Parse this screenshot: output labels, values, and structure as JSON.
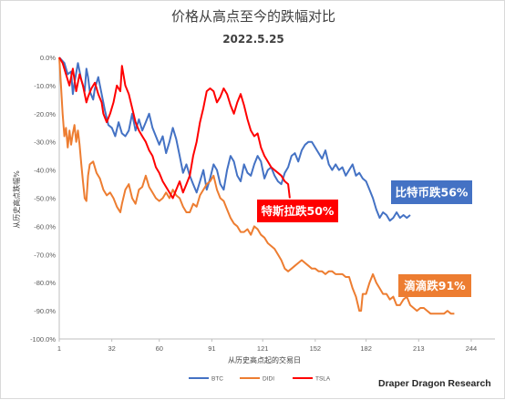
{
  "chart_data": {
    "type": "line",
    "title": "价格从高点至今的跌幅对比",
    "subtitle": "2022.5.25",
    "xlabel": "从历史高点起的交易日",
    "ylabel": "从历史高点跌幅%",
    "x_ticks": [
      "1",
      "32",
      "60",
      "91",
      "121",
      "152",
      "182",
      "213",
      "244"
    ],
    "x_tick_values": [
      1,
      32,
      60,
      91,
      121,
      152,
      182,
      213,
      244
    ],
    "xlim": [
      1,
      258
    ],
    "y_ticks": [
      "0.0%",
      "-10.0%",
      "-20.0%",
      "-30.0%",
      "-40.0%",
      "-50.0%",
      "-60.0%",
      "-70.0%",
      "-80.0%",
      "-90.0%",
      "-100.0%"
    ],
    "y_tick_values": [
      0,
      -10,
      -20,
      -30,
      -40,
      -50,
      -60,
      -70,
      -80,
      -90,
      -100
    ],
    "ylim": [
      -100,
      0
    ],
    "grid": false,
    "legend_position": "bottom",
    "series": [
      {
        "name": "BTC",
        "color": "#4472c4",
        "points": [
          [
            1,
            0
          ],
          [
            4,
            -2
          ],
          [
            6,
            -6
          ],
          [
            8,
            -5
          ],
          [
            9,
            -13
          ],
          [
            10,
            -9
          ],
          [
            12,
            -2
          ],
          [
            14,
            -8
          ],
          [
            16,
            -12
          ],
          [
            17,
            -4
          ],
          [
            18,
            -7
          ],
          [
            19,
            -12
          ],
          [
            21,
            -15
          ],
          [
            22,
            -11
          ],
          [
            24,
            -7
          ],
          [
            26,
            -13
          ],
          [
            28,
            -19
          ],
          [
            30,
            -24
          ],
          [
            32,
            -25
          ],
          [
            34,
            -28
          ],
          [
            36,
            -23
          ],
          [
            38,
            -27
          ],
          [
            40,
            -28
          ],
          [
            42,
            -26
          ],
          [
            44,
            -20
          ],
          [
            46,
            -26
          ],
          [
            48,
            -22
          ],
          [
            50,
            -26
          ],
          [
            52,
            -23
          ],
          [
            54,
            -20
          ],
          [
            56,
            -25
          ],
          [
            58,
            -28
          ],
          [
            60,
            -31
          ],
          [
            62,
            -28
          ],
          [
            64,
            -34
          ],
          [
            66,
            -30
          ],
          [
            68,
            -25
          ],
          [
            70,
            -29
          ],
          [
            72,
            -35
          ],
          [
            74,
            -41
          ],
          [
            76,
            -38
          ],
          [
            78,
            -42
          ],
          [
            80,
            -45
          ],
          [
            82,
            -48
          ],
          [
            84,
            -44
          ],
          [
            86,
            -40
          ],
          [
            88,
            -47
          ],
          [
            90,
            -43
          ],
          [
            92,
            -38
          ],
          [
            94,
            -40
          ],
          [
            96,
            -45
          ],
          [
            98,
            -47
          ],
          [
            100,
            -40
          ],
          [
            102,
            -35
          ],
          [
            104,
            -37
          ],
          [
            106,
            -42
          ],
          [
            108,
            -44
          ],
          [
            110,
            -38
          ],
          [
            112,
            -41
          ],
          [
            114,
            -42
          ],
          [
            116,
            -38
          ],
          [
            118,
            -35
          ],
          [
            120,
            -37
          ],
          [
            122,
            -43
          ],
          [
            124,
            -40
          ],
          [
            126,
            -39
          ],
          [
            128,
            -42
          ],
          [
            130,
            -44
          ],
          [
            132,
            -45
          ],
          [
            134,
            -41
          ],
          [
            136,
            -39
          ],
          [
            138,
            -35
          ],
          [
            140,
            -34
          ],
          [
            142,
            -37
          ],
          [
            144,
            -33
          ],
          [
            146,
            -31
          ],
          [
            148,
            -30
          ],
          [
            150,
            -30
          ],
          [
            152,
            -32
          ],
          [
            154,
            -34
          ],
          [
            156,
            -36
          ],
          [
            158,
            -33
          ],
          [
            160,
            -38
          ],
          [
            162,
            -40
          ],
          [
            164,
            -38
          ],
          [
            166,
            -40
          ],
          [
            168,
            -39
          ],
          [
            170,
            -42
          ],
          [
            172,
            -40
          ],
          [
            174,
            -38
          ],
          [
            176,
            -42
          ],
          [
            178,
            -41
          ],
          [
            180,
            -43
          ],
          [
            182,
            -44
          ],
          [
            184,
            -47
          ],
          [
            186,
            -50
          ],
          [
            188,
            -54
          ],
          [
            190,
            -57
          ],
          [
            192,
            -55
          ],
          [
            194,
            -56
          ],
          [
            196,
            -58
          ],
          [
            198,
            -57
          ],
          [
            200,
            -55
          ],
          [
            202,
            -57
          ],
          [
            204,
            -56
          ],
          [
            206,
            -57
          ],
          [
            208,
            -56
          ]
        ]
      },
      {
        "name": "DIDI",
        "color": "#ed7d31",
        "points": [
          [
            1,
            0
          ],
          [
            2,
            -10
          ],
          [
            3,
            -20
          ],
          [
            4,
            -28
          ],
          [
            5,
            -25
          ],
          [
            6,
            -32
          ],
          [
            7,
            -26
          ],
          [
            8,
            -31
          ],
          [
            9,
            -27
          ],
          [
            10,
            -24
          ],
          [
            11,
            -30
          ],
          [
            12,
            -26
          ],
          [
            13,
            -31
          ],
          [
            14,
            -38
          ],
          [
            15,
            -44
          ],
          [
            16,
            -50
          ],
          [
            17,
            -51
          ],
          [
            18,
            -42
          ],
          [
            19,
            -38
          ],
          [
            21,
            -37
          ],
          [
            23,
            -41
          ],
          [
            25,
            -43
          ],
          [
            27,
            -47
          ],
          [
            29,
            -49
          ],
          [
            31,
            -48
          ],
          [
            33,
            -50
          ],
          [
            35,
            -53
          ],
          [
            37,
            -55
          ],
          [
            38,
            -52
          ],
          [
            40,
            -47
          ],
          [
            42,
            -45
          ],
          [
            44,
            -50
          ],
          [
            46,
            -52
          ],
          [
            48,
            -47
          ],
          [
            50,
            -46
          ],
          [
            52,
            -42
          ],
          [
            54,
            -46
          ],
          [
            56,
            -48
          ],
          [
            58,
            -50
          ],
          [
            60,
            -51
          ],
          [
            62,
            -50
          ],
          [
            64,
            -48
          ],
          [
            66,
            -50
          ],
          [
            68,
            -47
          ],
          [
            70,
            -49
          ],
          [
            72,
            -50
          ],
          [
            74,
            -53
          ],
          [
            76,
            -55
          ],
          [
            78,
            -55
          ],
          [
            80,
            -52
          ],
          [
            82,
            -53
          ],
          [
            84,
            -49
          ],
          [
            86,
            -47
          ],
          [
            88,
            -45
          ],
          [
            90,
            -44
          ],
          [
            92,
            -42
          ],
          [
            94,
            -47
          ],
          [
            96,
            -50
          ],
          [
            98,
            -51
          ],
          [
            100,
            -54
          ],
          [
            102,
            -57
          ],
          [
            104,
            -59
          ],
          [
            106,
            -60
          ],
          [
            108,
            -62
          ],
          [
            110,
            -62
          ],
          [
            112,
            -61
          ],
          [
            114,
            -63
          ],
          [
            116,
            -60
          ],
          [
            118,
            -61
          ],
          [
            120,
            -63
          ],
          [
            122,
            -64
          ],
          [
            124,
            -66
          ],
          [
            126,
            -67
          ],
          [
            128,
            -68
          ],
          [
            130,
            -70
          ],
          [
            132,
            -72
          ],
          [
            134,
            -75
          ],
          [
            136,
            -76
          ],
          [
            138,
            -75
          ],
          [
            140,
            -74
          ],
          [
            142,
            -73
          ],
          [
            144,
            -72
          ],
          [
            146,
            -73
          ],
          [
            148,
            -74
          ],
          [
            150,
            -75
          ],
          [
            152,
            -75
          ],
          [
            154,
            -76
          ],
          [
            156,
            -76
          ],
          [
            158,
            -77
          ],
          [
            160,
            -76
          ],
          [
            162,
            -76
          ],
          [
            164,
            -77
          ],
          [
            166,
            -77
          ],
          [
            168,
            -77
          ],
          [
            170,
            -78
          ],
          [
            172,
            -78
          ],
          [
            174,
            -82
          ],
          [
            176,
            -85
          ],
          [
            178,
            -90
          ],
          [
            179,
            -90
          ],
          [
            180,
            -84
          ],
          [
            182,
            -84
          ],
          [
            184,
            -80
          ],
          [
            186,
            -77
          ],
          [
            188,
            -80
          ],
          [
            190,
            -82
          ],
          [
            192,
            -84
          ],
          [
            194,
            -84
          ],
          [
            196,
            -86
          ],
          [
            198,
            -85
          ],
          [
            200,
            -88
          ],
          [
            202,
            -88
          ],
          [
            204,
            -86
          ],
          [
            206,
            -85
          ],
          [
            208,
            -88
          ],
          [
            210,
            -89
          ],
          [
            212,
            -90
          ],
          [
            214,
            -89
          ],
          [
            216,
            -89
          ],
          [
            218,
            -90
          ],
          [
            220,
            -91
          ],
          [
            222,
            -91
          ],
          [
            224,
            -91
          ],
          [
            226,
            -91
          ],
          [
            228,
            -91
          ],
          [
            230,
            -90
          ],
          [
            232,
            -91
          ],
          [
            234,
            -91
          ]
        ]
      },
      {
        "name": "TSLA",
        "color": "#ff0000",
        "points": [
          [
            1,
            0
          ],
          [
            3,
            -2
          ],
          [
            5,
            -6
          ],
          [
            7,
            -10
          ],
          [
            9,
            -4
          ],
          [
            11,
            -12
          ],
          [
            13,
            -6
          ],
          [
            15,
            -10
          ],
          [
            17,
            -16
          ],
          [
            18,
            -14
          ],
          [
            20,
            -11
          ],
          [
            22,
            -9
          ],
          [
            24,
            -13
          ],
          [
            26,
            -16
          ],
          [
            27,
            -20
          ],
          [
            29,
            -23
          ],
          [
            31,
            -20
          ],
          [
            33,
            -16
          ],
          [
            35,
            -10
          ],
          [
            37,
            -12
          ],
          [
            38,
            -3
          ],
          [
            40,
            -10
          ],
          [
            42,
            -13
          ],
          [
            44,
            -18
          ],
          [
            46,
            -23
          ],
          [
            48,
            -26
          ],
          [
            50,
            -28
          ],
          [
            52,
            -30
          ],
          [
            54,
            -33
          ],
          [
            56,
            -35
          ],
          [
            58,
            -39
          ],
          [
            60,
            -41
          ],
          [
            62,
            -44
          ],
          [
            64,
            -46
          ],
          [
            66,
            -48
          ],
          [
            68,
            -50
          ],
          [
            70,
            -47
          ],
          [
            72,
            -44
          ],
          [
            74,
            -48
          ],
          [
            76,
            -45
          ],
          [
            78,
            -42
          ],
          [
            80,
            -35
          ],
          [
            82,
            -30
          ],
          [
            84,
            -23
          ],
          [
            86,
            -18
          ],
          [
            88,
            -12
          ],
          [
            90,
            -11
          ],
          [
            92,
            -12
          ],
          [
            94,
            -16
          ],
          [
            96,
            -14
          ],
          [
            98,
            -11
          ],
          [
            100,
            -13
          ],
          [
            102,
            -17
          ],
          [
            104,
            -20
          ],
          [
            106,
            -16
          ],
          [
            108,
            -13
          ],
          [
            110,
            -17
          ],
          [
            112,
            -22
          ],
          [
            114,
            -26
          ],
          [
            116,
            -28
          ],
          [
            118,
            -27
          ],
          [
            120,
            -32
          ],
          [
            122,
            -35
          ],
          [
            124,
            -37
          ],
          [
            126,
            -39
          ],
          [
            128,
            -40
          ],
          [
            130,
            -41
          ],
          [
            132,
            -42
          ],
          [
            134,
            -44
          ],
          [
            136,
            -45
          ],
          [
            137,
            -50
          ]
        ]
      }
    ],
    "callouts": [
      {
        "text": "比特币跌56%",
        "color": "#4472c4",
        "series": "BTC"
      },
      {
        "text": "特斯拉跌50%",
        "color": "#ff0000",
        "series": "TSLA"
      },
      {
        "text": "滴滴跌91%",
        "color": "#ed7d31",
        "series": "DIDI"
      }
    ],
    "credit": "Draper Dragon Research"
  }
}
